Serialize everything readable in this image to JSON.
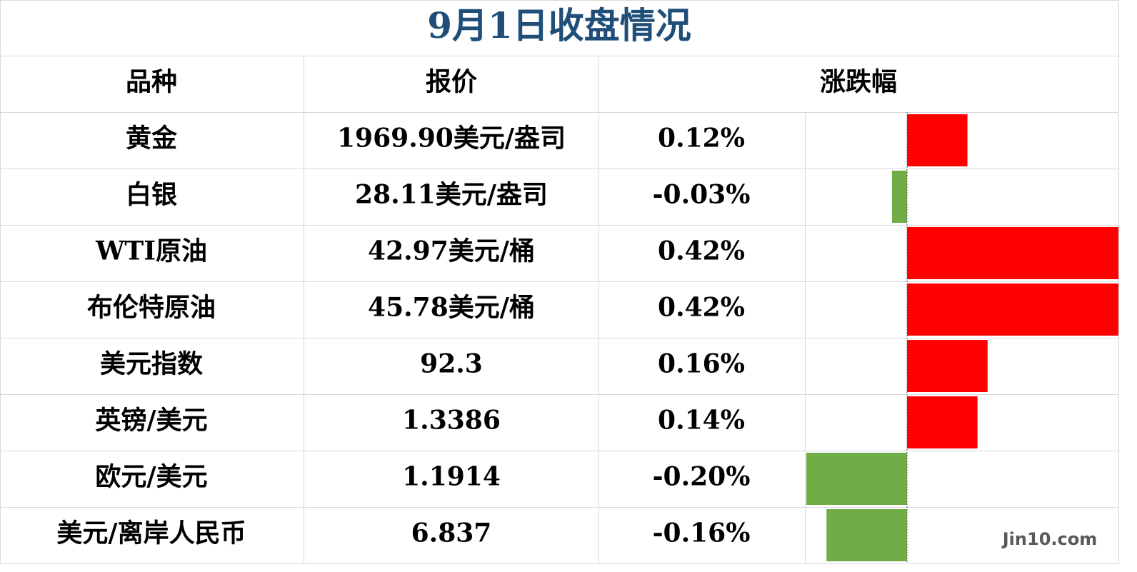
{
  "title": "9月1日收盘情况",
  "table": {
    "headers": [
      "品种",
      "报价",
      "涨跌幅"
    ],
    "rows": [
      {
        "name": "黄金",
        "price": "1969.90美元/盎司"
      },
      {
        "name": "白银",
        "price": "28.11美元/盎司"
      },
      {
        "name": "WTI原油",
        "price": "42.97美元/桶"
      },
      {
        "name": "布伦特原油",
        "price": "45.78美元/桶"
      },
      {
        "name": "美元指数",
        "price": "92.3"
      },
      {
        "name": "英镑/美元",
        "price": "1.3386"
      },
      {
        "name": "欧元/美元",
        "price": "1.1914"
      },
      {
        "name": "美元/离岸人民币",
        "price": "6.837"
      }
    ],
    "change": {
      "values": [
        0.12,
        -0.03,
        0.42,
        0.42,
        0.16,
        0.14,
        -0.2,
        -0.16
      ],
      "value_labels": [
        "0.12%",
        "-0.03%",
        "0.42%",
        "0.42%",
        "0.16%",
        "0.14%",
        "-0.20%",
        "-0.16%"
      ],
      "positive_color": "#ff0000",
      "negative_color": "#70ad47"
    }
  },
  "watermark": "Jin10.com"
}
